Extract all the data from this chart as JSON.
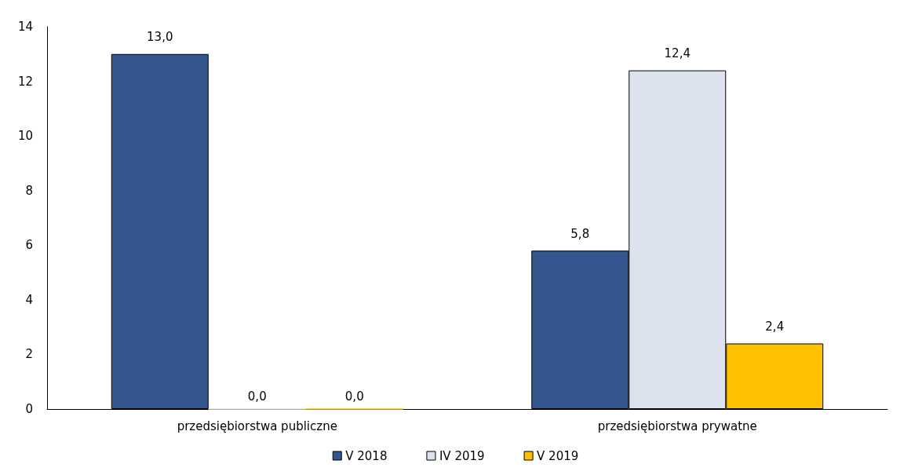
{
  "chart_data": {
    "type": "bar",
    "categories": [
      "przedsiębiorstwa publiczne",
      "przedsiębiorstwa prywatne"
    ],
    "series": [
      {
        "name": "V 2018",
        "color": "#34578f",
        "values": [
          13.0,
          5.8
        ],
        "value_labels": [
          "13,0",
          "5,8"
        ]
      },
      {
        "name": "IV 2019",
        "color": "#dde3ee",
        "values": [
          0.0,
          12.4
        ],
        "value_labels": [
          "0,0",
          "12,4"
        ]
      },
      {
        "name": "V 2019",
        "color": "#ffc000",
        "values": [
          0.0,
          2.4
        ],
        "value_labels": [
          "0,0",
          "2,4"
        ]
      }
    ],
    "ylim": [
      0,
      14
    ],
    "yticks": [
      0,
      2,
      4,
      6,
      8,
      10,
      12,
      14
    ],
    "grid": false,
    "legend": "bottom"
  }
}
